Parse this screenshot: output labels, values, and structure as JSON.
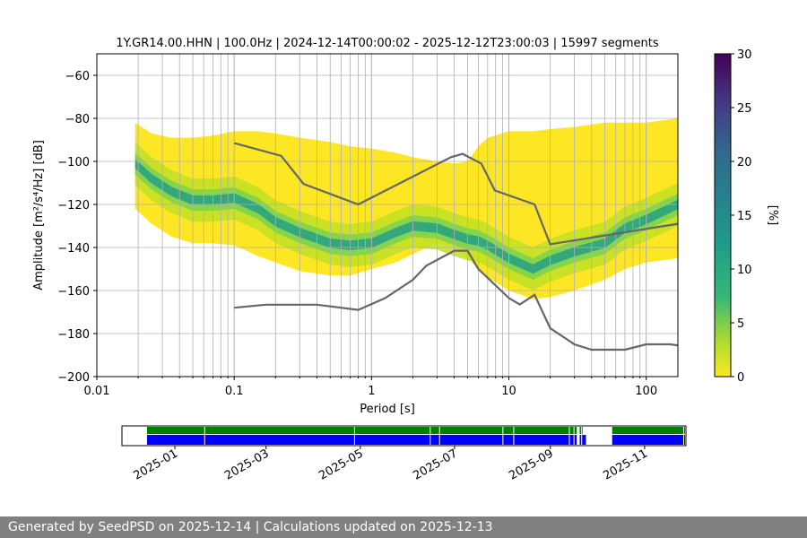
{
  "title": "1Y.GR14.00.HHN | 100.0Hz | 2024-12-14T00:00:02 - 2025-12-12T23:00:03 | 15997 segments",
  "footer": "Generated by SeedPSD on 2025-12-14 | Calculations updated on 2025-12-13",
  "chart_data": [
    {
      "type": "heatmap",
      "title": "1Y.GR14.00.HHN | 100.0Hz | 2024-12-14T00:00:02 - 2025-12-12T23:00:03 | 15997 segments",
      "xlabel": "Period [s]",
      "ylabel": "Amplitude [m²/s⁴/Hz] [dB]",
      "x_scale": "log",
      "xlim": [
        0.01,
        170
      ],
      "ylim": [
        -200,
        -50
      ],
      "xticks": [
        "0.01",
        "0.1",
        "1",
        "10",
        "100"
      ],
      "yticks": [
        "−200",
        "−180",
        "−160",
        "−140",
        "−120",
        "−100",
        "−80",
        "−60"
      ],
      "grid": true,
      "colorbar": {
        "label": "[%]",
        "range": [
          0,
          30
        ],
        "ticks": [
          "0",
          "5",
          "10",
          "15",
          "20",
          "25",
          "30"
        ],
        "colormap": "viridis_r"
      },
      "density_band": {
        "period": [
          0.019,
          0.025,
          0.035,
          0.05,
          0.07,
          0.1,
          0.15,
          0.2,
          0.3,
          0.5,
          0.7,
          1,
          1.5,
          2,
          3,
          4,
          5,
          6,
          7,
          10,
          15,
          20,
          30,
          50,
          70,
          100,
          170
        ],
        "upper": [
          -82,
          -87,
          -89,
          -89,
          -88,
          -86,
          -86,
          -87,
          -89,
          -91,
          -93,
          -94,
          -96,
          -98,
          -100,
          -101,
          -100,
          -93,
          -89,
          -86,
          -86,
          -85,
          -84,
          -82,
          -82,
          -82,
          -80
        ],
        "mode": [
          -101,
          -108,
          -114,
          -118,
          -118,
          -117,
          -122,
          -128,
          -133,
          -138,
          -139,
          -138,
          -133,
          -130,
          -131,
          -134,
          -136,
          -137,
          -139,
          -145,
          -150,
          -146,
          -142,
          -138,
          -131,
          -127,
          -120
        ],
        "lower": [
          -122,
          -129,
          -135,
          -138,
          -138,
          -139,
          -144,
          -147,
          -151,
          -153,
          -153,
          -150,
          -147,
          -143,
          -138,
          -140,
          -145,
          -150,
          -154,
          -160,
          -164,
          -163,
          -160,
          -155,
          -150,
          -147,
          -145
        ]
      },
      "series": [
        {
          "x": [
            0.1,
            0.22,
            0.32,
            0.8,
            3.8,
            4.6,
            6.3,
            7.9,
            15.4,
            20,
            170
          ],
          "y": [
            -91.5,
            -97.4,
            -110.5,
            -120,
            -98,
            -96.5,
            -101,
            -113.5,
            -120,
            -138.5,
            -129
          ]
        },
        {
          "x": [
            0.1,
            0.17,
            0.4,
            0.8,
            1.26,
            2,
            2.5,
            4,
            5,
            6,
            10,
            12,
            15.4,
            20,
            30,
            40,
            70,
            100,
            150,
            170
          ],
          "y": [
            -168,
            -166.6,
            -166.6,
            -169,
            -163.5,
            -155,
            -148.5,
            -141.5,
            -141.5,
            -150,
            -163.5,
            -166.5,
            -162,
            -177.5,
            -185,
            -187.5,
            -187.5,
            -185,
            -185,
            -185.5
          ]
        }
      ]
    },
    {
      "type": "timeline",
      "xlim": [
        "2024-12-14",
        "2025-12-14"
      ],
      "xticks": [
        "2025-01",
        "2025-03",
        "2025-05",
        "2025-07",
        "2025-09",
        "2025-11"
      ],
      "xtick_dates": [
        "2025-01-01",
        "2025-03-01",
        "2025-05-01",
        "2025-07-01",
        "2025-09-01",
        "2025-11-01"
      ],
      "segments": [
        {
          "color": "#008000",
          "spans": [
            [
              "2024-12-14",
              "2025-09-18"
            ],
            [
              "2025-09-20",
              "2025-09-22"
            ],
            [
              "2025-10-11",
              "2025-12-12"
            ]
          ]
        },
        {
          "color": "#0000ff",
          "spans": [
            [
              "2024-12-14",
              "2025-09-18"
            ],
            [
              "2025-09-20",
              "2025-09-24"
            ],
            [
              "2025-10-11",
              "2025-12-12"
            ]
          ]
        }
      ],
      "gaps": [
        "2025-01-20",
        "2025-04-27",
        "2025-06-15",
        "2025-06-21",
        "2025-08-01",
        "2025-08-08",
        "2025-09-13",
        "2025-09-16",
        "2025-09-21",
        "2025-11-26",
        "2025-12-05"
      ]
    }
  ]
}
